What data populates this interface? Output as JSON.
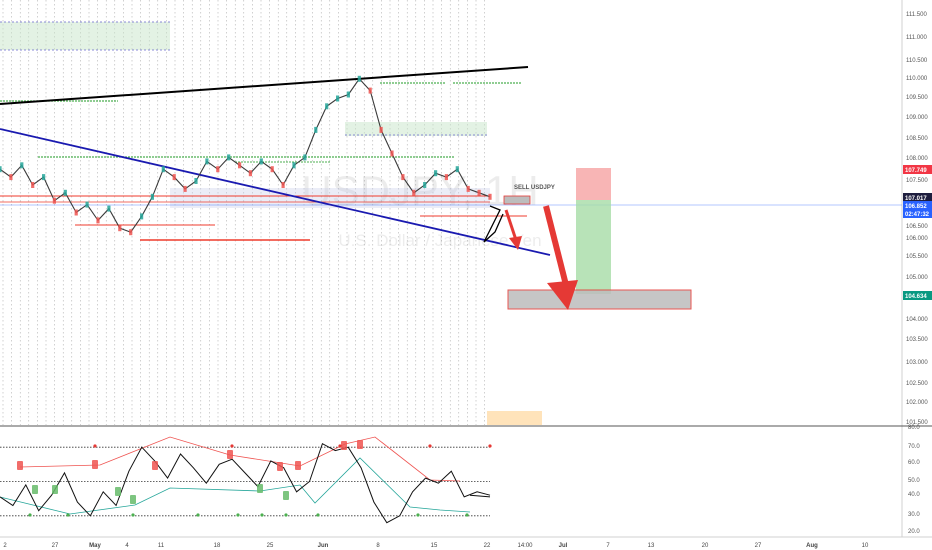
{
  "symbol": "USDJPY",
  "interval": "1H",
  "subtitle": "U.S. Dollar / Japanese Yen",
  "annotation": "SELL USDJPY",
  "price_axis": [
    "111.500",
    "111.000",
    "110.500",
    "110.000",
    "109.500",
    "109.000",
    "108.500",
    "108.000",
    "107.500",
    "106.500",
    "106.000",
    "105.500",
    "105.000",
    "104.000",
    "103.500",
    "103.000",
    "102.500",
    "102.000",
    "101.500"
  ],
  "price_tags": {
    "stop": {
      "text": "107.749",
      "color": "#f23645"
    },
    "current_a": {
      "text": "107.017",
      "color": "#1e1e3f"
    },
    "current_b": {
      "text": "106.852",
      "color": "#2962ff"
    },
    "countdown": {
      "text": "02:47:32",
      "color": "#2962ff"
    },
    "target": {
      "text": "104.634",
      "color": "#089981"
    }
  },
  "rsi_axis": [
    "80.0",
    "70.0",
    "60.0",
    "50.0",
    "40.0",
    "30.0",
    "20.0"
  ],
  "time_axis": [
    "2",
    "27",
    "May",
    "4",
    "11",
    "18",
    "25",
    "Jun",
    "8",
    "15",
    "22",
    "14:00",
    "Jul",
    "7",
    "13",
    "20",
    "27",
    "Aug",
    "10"
  ],
  "colors": {
    "trendline_top": "#000000",
    "trendline_blue": "#1a1ab0",
    "stop_zone": "#f7a8a8",
    "target_zone": "#a6dca6",
    "arrow": "#e53935",
    "support_line": "#ef3b2c",
    "resistance_band": "#c8e6c9"
  },
  "chart_data": {
    "type": "line",
    "series": [
      {
        "name": "USDJPY",
        "values": [
          107.6,
          107.4,
          107.7,
          107.2,
          107.4,
          106.8,
          107.0,
          106.5,
          106.7,
          106.3,
          106.6,
          106.1,
          106.0,
          106.4,
          106.9,
          107.6,
          107.4,
          107.1,
          107.3,
          107.8,
          107.6,
          107.9,
          107.7,
          107.5,
          107.8,
          107.6,
          107.2,
          107.7,
          107.9,
          108.6,
          109.2,
          109.4,
          109.5,
          109.9,
          109.6,
          108.6,
          108.0,
          107.4,
          107.0,
          107.2,
          107.5,
          107.4,
          107.6,
          107.1,
          107.0,
          106.9
        ]
      },
      {
        "name": "RSI",
        "values": [
          41,
          36,
          48,
          33,
          42,
          55,
          38,
          30,
          44,
          36,
          56,
          70,
          62,
          52,
          66,
          58,
          49,
          60,
          63,
          55,
          47,
          62,
          58,
          44,
          50,
          72,
          68,
          70,
          58,
          38,
          26,
          30,
          44,
          52,
          49,
          56,
          41,
          44,
          42
        ]
      }
    ],
    "ylim": [
      101.3,
      111.7
    ],
    "rsi_ylim": [
      20,
      80
    ]
  }
}
